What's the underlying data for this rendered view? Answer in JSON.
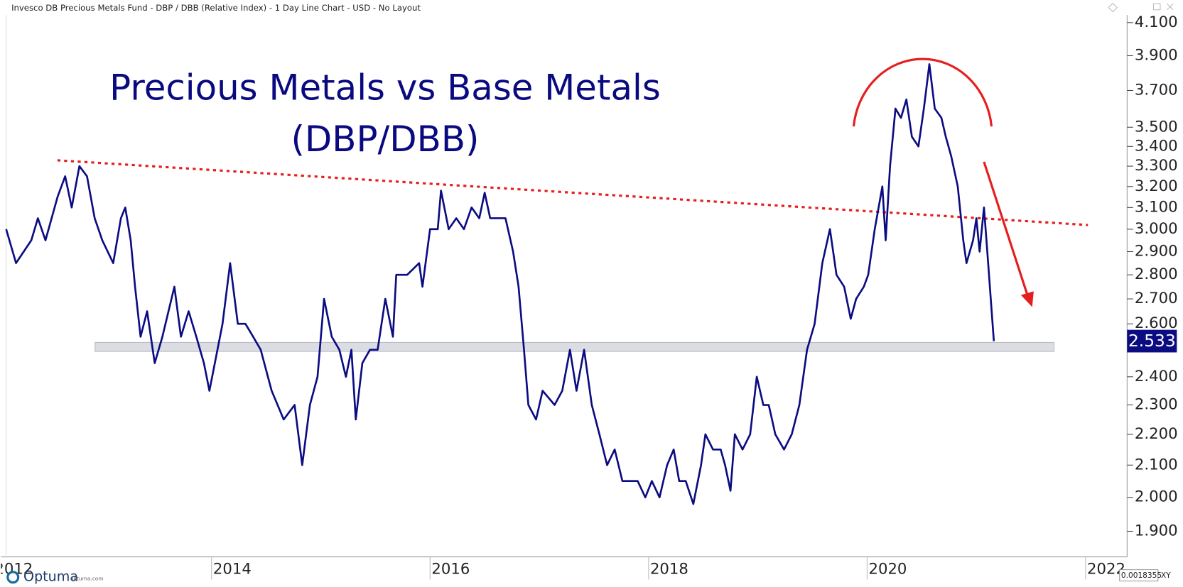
{
  "header": {
    "text": "Invesco DB Precious Metals Fund - DBP / DBB (Relative Index) - 1 Day Line Chart - USD - No Layout"
  },
  "chart_data": {
    "type": "line",
    "title": "Precious Metals vs Base Metals",
    "subtitle": "(DBP/DBB)",
    "log_scale": true,
    "grid": false,
    "x": [
      2012.12,
      2012.21,
      2012.35,
      2012.41,
      2012.48,
      2012.59,
      2012.66,
      2012.72,
      2012.79,
      2012.86,
      2012.93,
      2013.0,
      2013.1,
      2013.17,
      2013.21,
      2013.26,
      2013.3,
      2013.35,
      2013.41,
      2013.48,
      2013.55,
      2013.66,
      2013.72,
      2013.79,
      2013.86,
      2013.93,
      2013.98,
      2014.03,
      2014.1,
      2014.17,
      2014.24,
      2014.31,
      2014.38,
      2014.45,
      2014.55,
      2014.66,
      2014.76,
      2014.83,
      2014.9,
      2014.97,
      2015.03,
      2015.1,
      2015.17,
      2015.23,
      2015.28,
      2015.32,
      2015.38,
      2015.45,
      2015.52,
      2015.59,
      2015.66,
      2015.69,
      2015.79,
      2015.9,
      2015.93,
      2016.0,
      2016.07,
      2016.1,
      2016.17,
      2016.24,
      2016.31,
      2016.38,
      2016.45,
      2016.5,
      2016.55,
      2016.62,
      2016.69,
      2016.76,
      2016.81,
      2016.86,
      2016.9,
      2016.97,
      2017.03,
      2017.14,
      2017.21,
      2017.28,
      2017.34,
      2017.41,
      2017.48,
      2017.55,
      2017.62,
      2017.69,
      2017.76,
      2017.83,
      2017.9,
      2017.97,
      2018.03,
      2018.1,
      2018.17,
      2018.23,
      2018.28,
      2018.34,
      2018.41,
      2018.48,
      2018.52,
      2018.59,
      2018.66,
      2018.7,
      2018.75,
      2018.79,
      2018.86,
      2018.93,
      2018.99,
      2019.05,
      2019.1,
      2019.16,
      2019.24,
      2019.31,
      2019.38,
      2019.45,
      2019.52,
      2019.59,
      2019.66,
      2019.72,
      2019.79,
      2019.85,
      2019.9,
      2019.97,
      2020.01,
      2020.07,
      2020.14,
      2020.17,
      2020.21,
      2020.26,
      2020.31,
      2020.36,
      2020.41,
      2020.47,
      2020.52,
      2020.57,
      2020.62,
      2020.68,
      2020.72,
      2020.77,
      2020.83,
      2020.88,
      2020.91,
      2020.97,
      2021.0,
      2021.03,
      2021.07,
      2021.1,
      2021.14,
      2021.16
    ],
    "series": [
      {
        "name": "DBP / DBB",
        "color": "#0c0c82",
        "values": [
          3.0,
          2.85,
          2.95,
          3.05,
          2.95,
          3.15,
          3.25,
          3.1,
          3.3,
          3.25,
          3.05,
          2.95,
          2.85,
          3.05,
          3.1,
          2.95,
          2.75,
          2.55,
          2.65,
          2.45,
          2.55,
          2.75,
          2.55,
          2.65,
          2.55,
          2.45,
          2.35,
          2.45,
          2.6,
          2.85,
          2.6,
          2.6,
          2.55,
          2.5,
          2.35,
          2.25,
          2.3,
          2.1,
          2.3,
          2.4,
          2.7,
          2.55,
          2.5,
          2.4,
          2.5,
          2.25,
          2.45,
          2.5,
          2.5,
          2.7,
          2.55,
          2.8,
          2.8,
          2.85,
          2.75,
          3.0,
          3.0,
          3.18,
          3.0,
          3.05,
          3.0,
          3.1,
          3.05,
          3.17,
          3.05,
          3.05,
          3.05,
          2.9,
          2.75,
          2.5,
          2.3,
          2.25,
          2.35,
          2.3,
          2.35,
          2.5,
          2.35,
          2.5,
          2.3,
          2.2,
          2.1,
          2.15,
          2.05,
          2.05,
          2.05,
          2.0,
          2.05,
          2.0,
          2.1,
          2.15,
          2.05,
          2.05,
          1.98,
          2.1,
          2.2,
          2.15,
          2.15,
          2.1,
          2.02,
          2.2,
          2.15,
          2.2,
          2.4,
          2.3,
          2.3,
          2.2,
          2.15,
          2.2,
          2.3,
          2.5,
          2.6,
          2.85,
          3.0,
          2.8,
          2.75,
          2.62,
          2.7,
          2.75,
          2.8,
          3.0,
          3.2,
          2.95,
          3.3,
          3.6,
          3.55,
          3.65,
          3.45,
          3.4,
          3.6,
          3.85,
          3.6,
          3.55,
          3.45,
          3.35,
          3.2,
          2.95,
          2.85,
          2.95,
          3.05,
          2.9,
          3.1,
          2.9,
          2.65,
          2.533
        ]
      }
    ],
    "xlim": [
      2012.12,
      2022.38
    ],
    "xticks": [
      2012,
      2014,
      2016,
      2018,
      2020,
      2022
    ],
    "ylim": [
      1.832,
      4.147
    ],
    "yticks": [
      {
        "value": 1.9,
        "label": "1.900"
      },
      {
        "value": 2.0,
        "label": "2.000"
      },
      {
        "value": 2.1,
        "label": "2.100"
      },
      {
        "value": 2.2,
        "label": "2.200"
      },
      {
        "value": 2.3,
        "label": "2.300"
      },
      {
        "value": 2.4,
        "label": "2.400"
      },
      {
        "value": 2.6,
        "label": "2.600"
      },
      {
        "value": 2.7,
        "label": "2.700"
      },
      {
        "value": 2.8,
        "label": "2.800"
      },
      {
        "value": 2.9,
        "label": "2.900"
      },
      {
        "value": 3.0,
        "label": "3.000"
      },
      {
        "value": 3.1,
        "label": "3.100"
      },
      {
        "value": 3.2,
        "label": "3.200"
      },
      {
        "value": 3.3,
        "label": "3.300"
      },
      {
        "value": 3.4,
        "label": "3.400"
      },
      {
        "value": 3.5,
        "label": "3.500"
      },
      {
        "value": 3.7,
        "label": "3.700"
      },
      {
        "value": 3.9,
        "label": "3.900"
      },
      {
        "value": 4.1,
        "label": "4.100"
      }
    ]
  },
  "footer": {
    "brand": "Optuma",
    "site": "optuma.com",
    "readout": "0.0018355",
    "mode": "XY"
  }
}
